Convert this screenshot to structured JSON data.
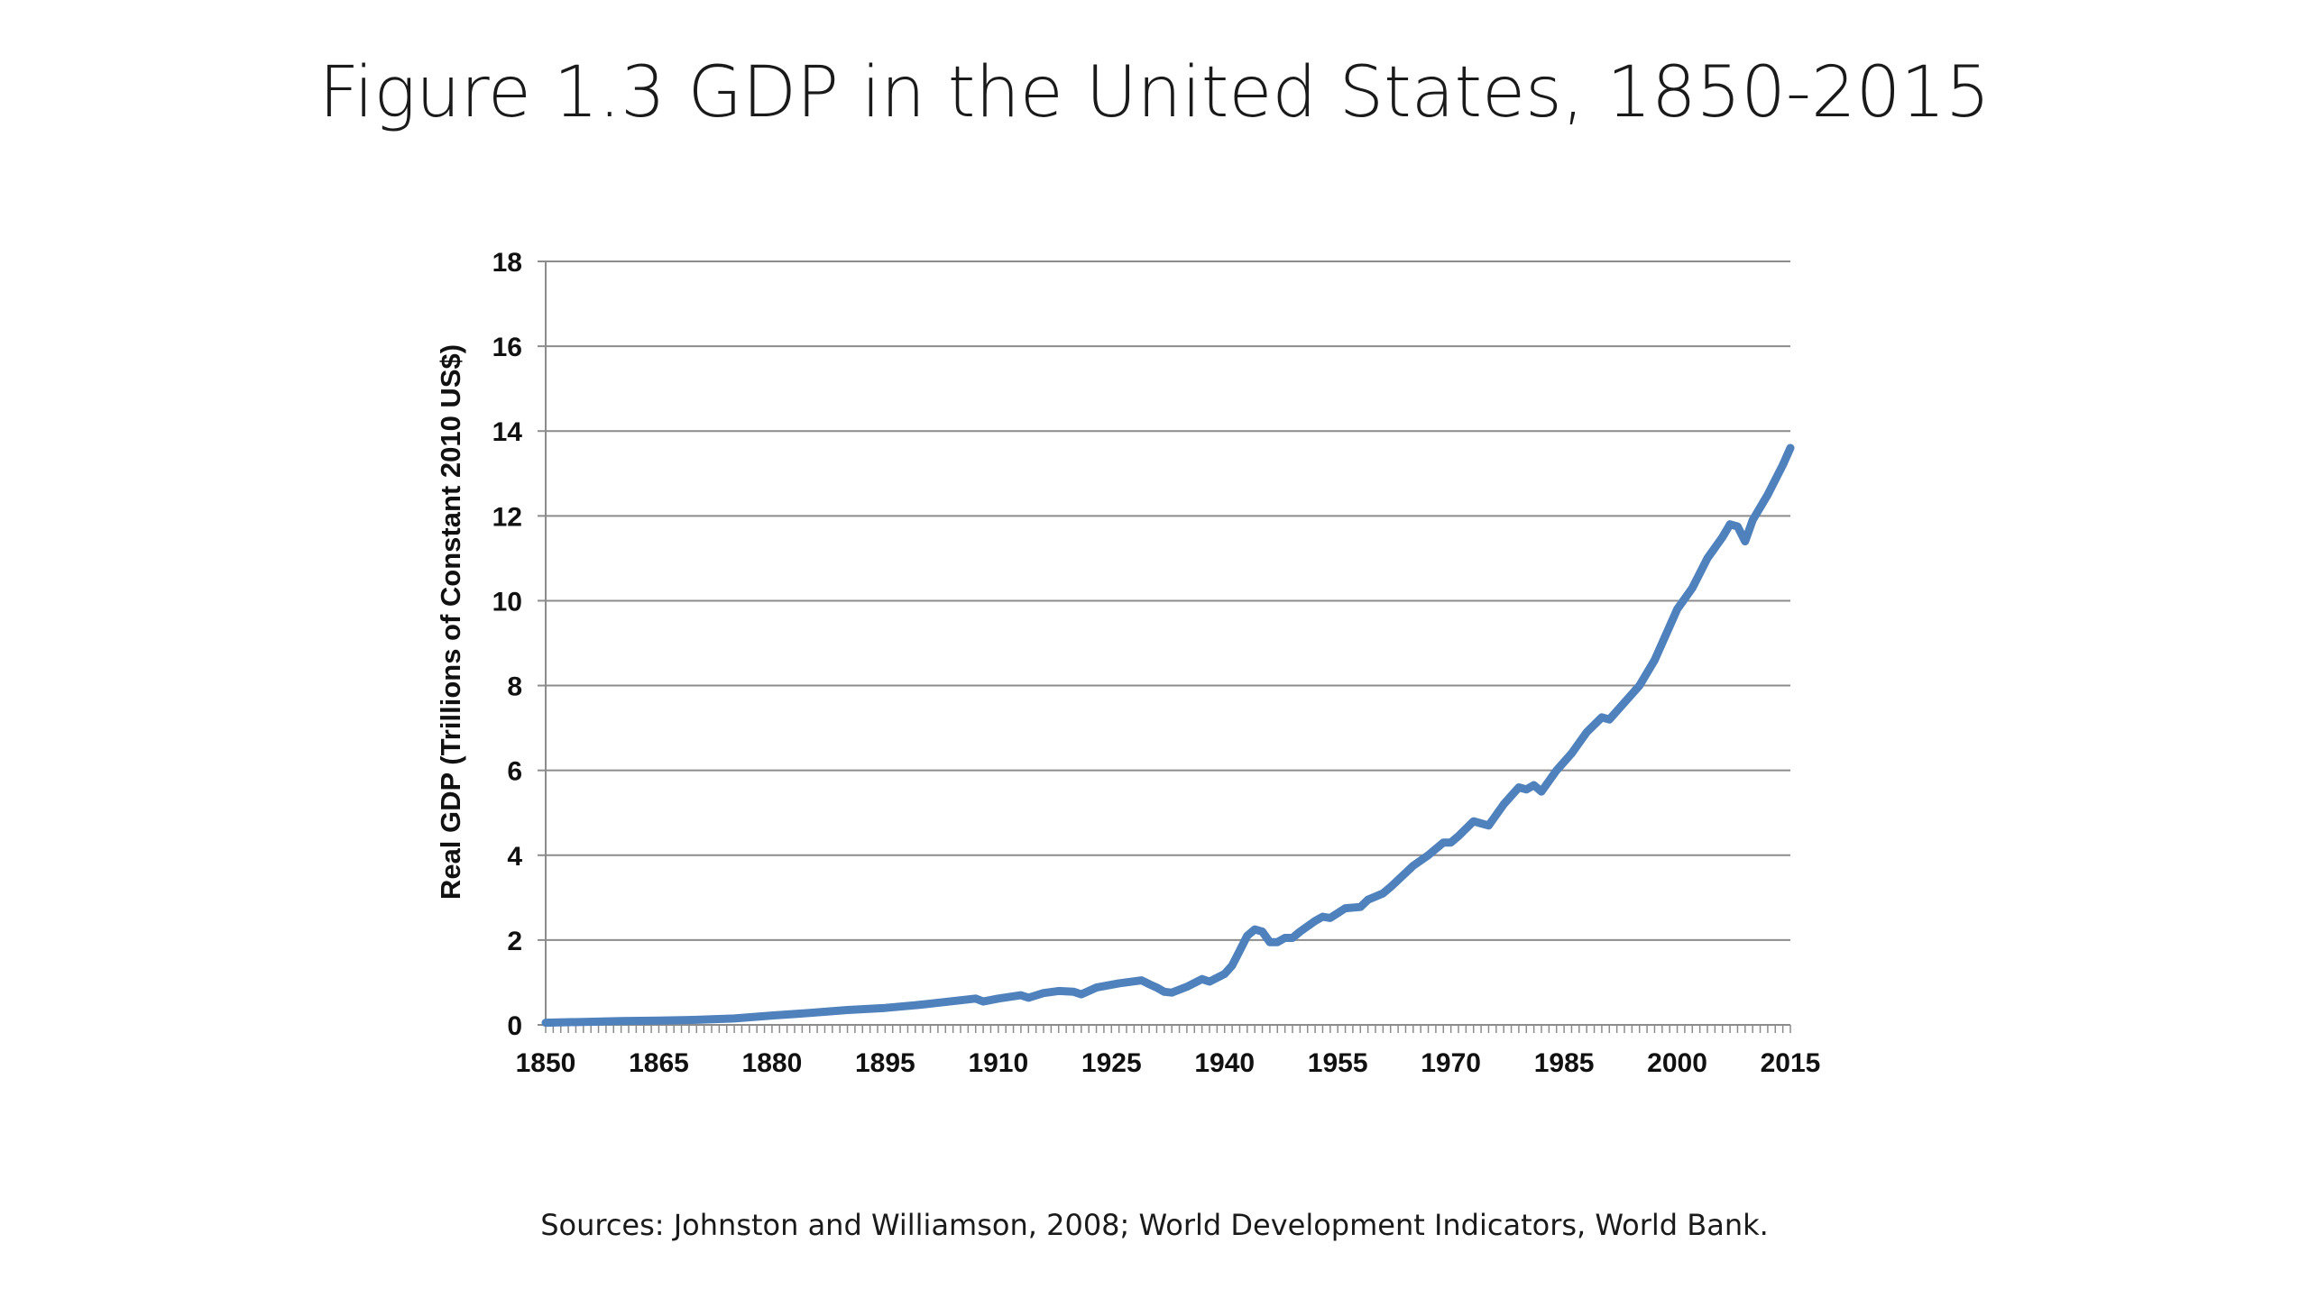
{
  "slide": {
    "title": "Figure 1.3 GDP in the United States, 1850-2015",
    "source": "Sources: Johnston and Williamson, 2008; World Development Indicators, World Bank."
  },
  "chart_data": {
    "type": "line",
    "title": "",
    "xlabel": "",
    "ylabel": "Real GDP (Trillions of Constant 2010 US$)",
    "xlim": [
      1850,
      2015
    ],
    "ylim": [
      0,
      18
    ],
    "x_ticks": [
      1850,
      1865,
      1880,
      1895,
      1910,
      1925,
      1940,
      1955,
      1970,
      1985,
      2000,
      2015
    ],
    "y_ticks": [
      0,
      2,
      4,
      6,
      8,
      10,
      12,
      14,
      16,
      18
    ],
    "grid": true,
    "line_color": "#4f81bd",
    "series": [
      {
        "name": "",
        "x": [
          1850,
          1855,
          1860,
          1865,
          1870,
          1875,
          1880,
          1885,
          1890,
          1895,
          1900,
          1905,
          1907,
          1908,
          1910,
          1913,
          1914,
          1916,
          1918,
          1920,
          1921,
          1923,
          1926,
          1929,
          1930,
          1931,
          1932,
          1933,
          1935,
          1937,
          1938,
          1940,
          1941,
          1942,
          1943,
          1944,
          1945,
          1946,
          1947,
          1948,
          1949,
          1950,
          1952,
          1953,
          1954,
          1956,
          1958,
          1959,
          1961,
          1962,
          1965,
          1967,
          1969,
          1970,
          1971,
          1973,
          1974,
          1975,
          1977,
          1979,
          1980,
          1981,
          1982,
          1984,
          1986,
          1988,
          1990,
          1991,
          1993,
          1995,
          1997,
          1999,
          2000,
          2002,
          2004,
          2006,
          2007,
          2008,
          2009,
          2010,
          2012,
          2014,
          2015
        ],
        "values": [
          0.05,
          0.07,
          0.09,
          0.1,
          0.12,
          0.15,
          0.22,
          0.28,
          0.35,
          0.4,
          0.48,
          0.58,
          0.62,
          0.55,
          0.62,
          0.7,
          0.64,
          0.75,
          0.8,
          0.78,
          0.72,
          0.88,
          0.98,
          1.05,
          0.96,
          0.88,
          0.78,
          0.76,
          0.9,
          1.08,
          1.02,
          1.2,
          1.4,
          1.75,
          2.1,
          2.25,
          2.2,
          1.95,
          1.95,
          2.05,
          2.05,
          2.2,
          2.45,
          2.55,
          2.52,
          2.75,
          2.78,
          2.95,
          3.1,
          3.25,
          3.75,
          4.0,
          4.3,
          4.3,
          4.45,
          4.8,
          4.75,
          4.7,
          5.2,
          5.6,
          5.55,
          5.65,
          5.5,
          6.0,
          6.4,
          6.9,
          7.25,
          7.2,
          7.6,
          8.0,
          8.6,
          9.4,
          9.8,
          10.3,
          11.0,
          11.5,
          11.8,
          11.75,
          11.4,
          11.9,
          12.5,
          13.2,
          13.6
        ]
      }
    ]
  }
}
